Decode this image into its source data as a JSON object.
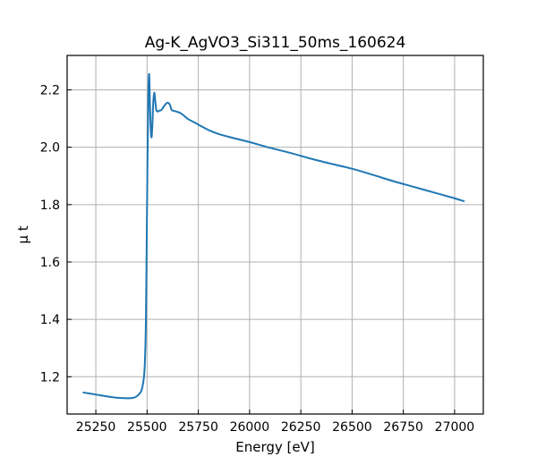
{
  "chart_data": {
    "type": "line",
    "title": "Ag-K_AgVO3_Si311_50ms_160624",
    "xlabel": "Energy [eV]",
    "ylabel": "μ t",
    "xlim": [
      25110,
      27140
    ],
    "ylim": [
      1.07,
      2.32
    ],
    "xticks": [
      25250,
      25500,
      25750,
      26000,
      26250,
      26500,
      26750,
      27000
    ],
    "xtick_labels": [
      "25250",
      "25500",
      "25750",
      "26000",
      "26250",
      "26500",
      "26750",
      "27000"
    ],
    "yticks": [
      1.2,
      1.4,
      1.6,
      1.8,
      2.0,
      2.2
    ],
    "ytick_labels": [
      "1.2",
      "1.4",
      "1.6",
      "1.8",
      "2.0",
      "2.2"
    ],
    "grid": true,
    "tick_direction": "in",
    "series": [
      {
        "color": "#1f77b4",
        "x": [
          25190,
          25250,
          25300,
          25350,
          25400,
          25430,
          25450,
          25470,
          25480,
          25488,
          25494,
          25498,
          25502,
          25506,
          25510,
          25514,
          25518,
          25522,
          25526,
          25530,
          25535,
          25540,
          25545,
          25550,
          25555,
          25560,
          25565,
          25570,
          25575,
          25580,
          25590,
          25600,
          25610,
          25615,
          25620,
          25630,
          25640,
          25660,
          25680,
          25700,
          25730,
          25760,
          25800,
          25850,
          25900,
          25950,
          26000,
          26100,
          26200,
          26300,
          26400,
          26500,
          26600,
          26700,
          26800,
          26900,
          27000,
          27045
        ],
        "y": [
          1.145,
          1.138,
          1.132,
          1.127,
          1.125,
          1.126,
          1.132,
          1.148,
          1.175,
          1.23,
          1.38,
          1.65,
          1.95,
          2.18,
          2.255,
          2.15,
          2.06,
          2.035,
          2.08,
          2.155,
          2.19,
          2.16,
          2.13,
          2.125,
          2.125,
          2.128,
          2.128,
          2.13,
          2.135,
          2.14,
          2.15,
          2.155,
          2.15,
          2.14,
          2.13,
          2.127,
          2.125,
          2.12,
          2.11,
          2.098,
          2.087,
          2.075,
          2.06,
          2.046,
          2.036,
          2.027,
          2.018,
          1.998,
          1.98,
          1.96,
          1.942,
          1.925,
          1.904,
          1.882,
          1.862,
          1.842,
          1.822,
          1.812
        ]
      }
    ]
  }
}
